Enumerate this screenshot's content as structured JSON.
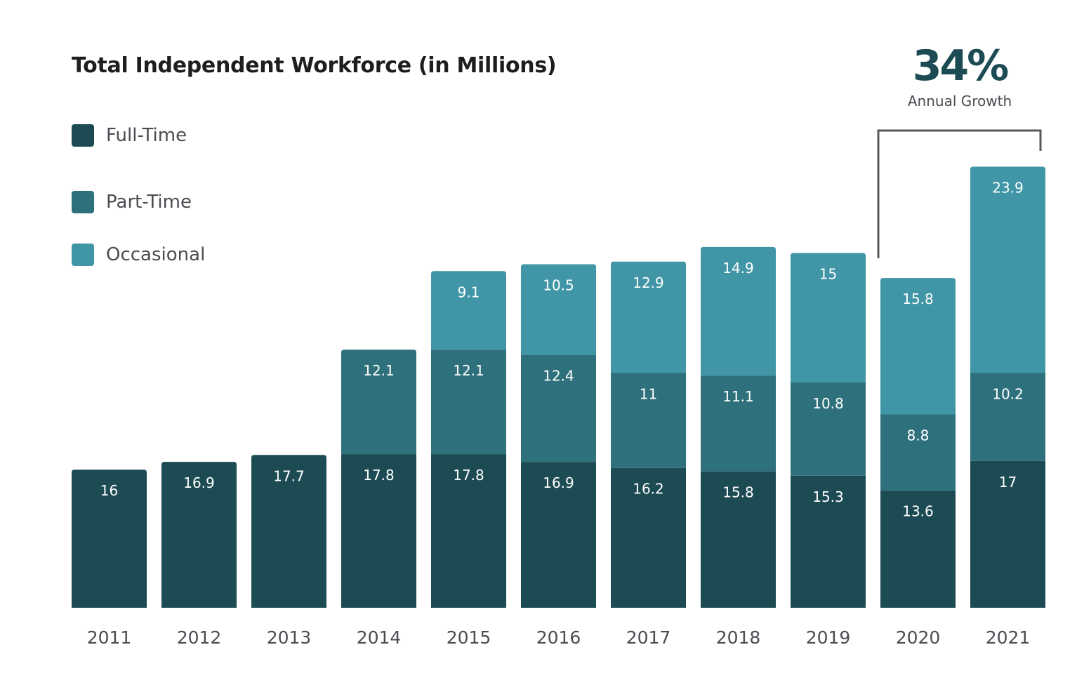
{
  "chart_data": {
    "type": "bar",
    "stacked": true,
    "title": "Total Independent Workforce (in Millions)",
    "categories": [
      "2011",
      "2012",
      "2013",
      "2014",
      "2015",
      "2016",
      "2017",
      "2018",
      "2019",
      "2020",
      "2021"
    ],
    "series": [
      {
        "name": "Full-Time",
        "color": "#1d4b53",
        "values": [
          16,
          16.9,
          17.7,
          17.8,
          17.8,
          16.9,
          16.2,
          15.8,
          15.3,
          13.6,
          17
        ]
      },
      {
        "name": "Part-Time",
        "color": "#2e707b",
        "values": [
          null,
          null,
          null,
          12.1,
          12.1,
          12.4,
          11,
          11.1,
          10.8,
          8.8,
          10.2
        ]
      },
      {
        "name": "Occasional",
        "color": "#4096a6",
        "values": [
          null,
          null,
          null,
          null,
          9.1,
          10.5,
          12.9,
          14.9,
          15,
          15.8,
          23.9
        ]
      }
    ],
    "legend_position": "top-left",
    "grid": false,
    "annotation": {
      "value": "34%",
      "label": "Annual Growth",
      "from": "2020",
      "to": "2021"
    }
  }
}
